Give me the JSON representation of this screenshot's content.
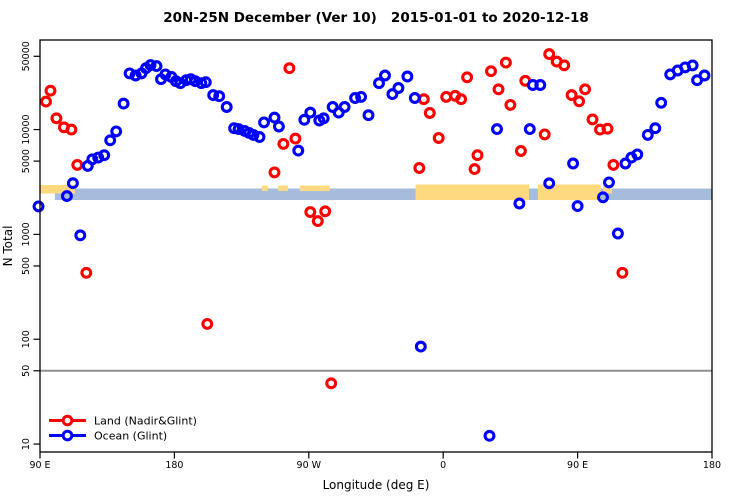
{
  "chart_data": {
    "type": "scatter",
    "title": "20N-25N December (Ver 10)   2015-01-01 to 2020-12-18",
    "xlabel": "Longitude (deg E)",
    "ylabel": "N Total",
    "x_axis": {
      "note": "wrapped longitude axis spanning 450 deg: 90E east to 180, then 90W, 0, 90E, 180",
      "range_deg": [
        90,
        540
      ],
      "ticks": [
        {
          "deg": 90,
          "label": "90 E"
        },
        {
          "deg": 180,
          "label": "180"
        },
        {
          "deg": 270,
          "label": "90 W"
        },
        {
          "deg": 360,
          "label": "0"
        },
        {
          "deg": 450,
          "label": "90 E"
        },
        {
          "deg": 540,
          "label": "180"
        }
      ]
    },
    "y_axis": {
      "scale": "log10",
      "range": [
        8.4,
        71500
      ],
      "ticks": [
        {
          "n": 50000,
          "label": "50000"
        },
        {
          "n": 10000,
          "label": "10000"
        },
        {
          "n": 5000,
          "label": "5000"
        },
        {
          "n": 1000,
          "label": "1000"
        },
        {
          "n": 500,
          "label": "500"
        },
        {
          "n": 100,
          "label": "100"
        },
        {
          "n": 50,
          "label": "50"
        },
        {
          "n": 10,
          "label": "10"
        }
      ]
    },
    "reference_line": {
      "n": 50,
      "color": "#8f8f8f"
    },
    "map_strip": {
      "description": "world-map band for latitude 20N-25N drawn across the plot",
      "ocean_color": "#a5bcdc",
      "land_color": "#ffd97f",
      "ocean_range_deg": [
        100,
        540
      ],
      "land_segments": [
        {
          "from": 90,
          "to": 113.5,
          "extent": "half"
        },
        {
          "from": 238.5,
          "to": 242.5,
          "extent": "sliver"
        },
        {
          "from": 249.5,
          "to": 256,
          "extent": "sliver"
        },
        {
          "from": 264,
          "to": 284,
          "extent": "sliver"
        },
        {
          "from": 341.5,
          "to": 417.5,
          "extent": "full"
        },
        {
          "from": 423.5,
          "to": 465.5,
          "extent": "full"
        },
        {
          "from": 467,
          "to": 473,
          "extent": "half"
        }
      ]
    },
    "series": [
      {
        "name": "Land (Nadir&Glint)",
        "color": "#ff0000",
        "marker": "open-circle",
        "points": [
          [
            94,
            18500
          ],
          [
            97,
            23500
          ],
          [
            101,
            12800
          ],
          [
            106,
            10500
          ],
          [
            111,
            10000
          ],
          [
            115,
            4600
          ],
          [
            121,
            430
          ],
          [
            202,
            140
          ],
          [
            247,
            3900
          ],
          [
            253,
            7300
          ],
          [
            257,
            38500
          ],
          [
            261,
            8200
          ],
          [
            271,
            1630
          ],
          [
            276,
            1340
          ],
          [
            281,
            1660
          ],
          [
            285,
            38
          ],
          [
            344,
            4300
          ],
          [
            347,
            19500
          ],
          [
            351,
            14400
          ],
          [
            357,
            8300
          ],
          [
            362,
            20500
          ],
          [
            368,
            21000
          ],
          [
            372,
            19500
          ],
          [
            376,
            31500
          ],
          [
            381,
            4200
          ],
          [
            383,
            5700
          ],
          [
            392,
            36000
          ],
          [
            397,
            24200
          ],
          [
            402,
            43500
          ],
          [
            405,
            17200
          ],
          [
            412,
            6250
          ],
          [
            415,
            29200
          ],
          [
            428,
            9000
          ],
          [
            431,
            52500
          ],
          [
            436,
            44500
          ],
          [
            441,
            41000
          ],
          [
            446,
            21300
          ],
          [
            451,
            18600
          ],
          [
            455,
            24200
          ],
          [
            460,
            12500
          ],
          [
            465,
            10000
          ],
          [
            470,
            10200
          ],
          [
            474,
            4600
          ],
          [
            480,
            430
          ]
        ]
      },
      {
        "name": "Ocean (Glint)",
        "color": "#0000ff",
        "marker": "open-circle",
        "points": [
          [
            89,
            1850
          ],
          [
            108,
            2320
          ],
          [
            112,
            3080
          ],
          [
            117,
            980
          ],
          [
            122,
            4500
          ],
          [
            125,
            5200
          ],
          [
            129,
            5400
          ],
          [
            133,
            5700
          ],
          [
            137,
            7900
          ],
          [
            141,
            9600
          ],
          [
            146,
            17700
          ],
          [
            150,
            34300
          ],
          [
            154,
            32800
          ],
          [
            158,
            34300
          ],
          [
            161,
            38500
          ],
          [
            164,
            41200
          ],
          [
            168,
            40300
          ],
          [
            171,
            30200
          ],
          [
            174,
            33600
          ],
          [
            178,
            31700
          ],
          [
            181,
            28900
          ],
          [
            184,
            27700
          ],
          [
            188,
            29600
          ],
          [
            191,
            30200
          ],
          [
            194,
            28900
          ],
          [
            198,
            27700
          ],
          [
            201,
            28300
          ],
          [
            206,
            21300
          ],
          [
            210,
            20800
          ],
          [
            215,
            16400
          ],
          [
            220,
            10300
          ],
          [
            223,
            10100
          ],
          [
            227,
            9700
          ],
          [
            230,
            9300
          ],
          [
            233,
            8900
          ],
          [
            237,
            8500
          ],
          [
            240,
            11700
          ],
          [
            247,
            13000
          ],
          [
            250,
            10700
          ],
          [
            263,
            6300
          ],
          [
            267,
            12400
          ],
          [
            271,
            14500
          ],
          [
            277,
            12200
          ],
          [
            280,
            12800
          ],
          [
            286,
            16400
          ],
          [
            290,
            14500
          ],
          [
            294,
            16400
          ],
          [
            301,
            20000
          ],
          [
            305,
            20500
          ],
          [
            310,
            13700
          ],
          [
            317,
            27700
          ],
          [
            321,
            32800
          ],
          [
            326,
            21800
          ],
          [
            330,
            24900
          ],
          [
            336,
            32100
          ],
          [
            341,
            20000
          ],
          [
            345,
            85
          ],
          [
            391,
            12
          ],
          [
            396,
            10100
          ],
          [
            411,
            1970
          ],
          [
            418,
            10100
          ],
          [
            420,
            26600
          ],
          [
            425,
            26600
          ],
          [
            431,
            3070
          ],
          [
            447,
            4750
          ],
          [
            450,
            1860
          ],
          [
            467,
            2260
          ],
          [
            471,
            3130
          ],
          [
            477,
            1020
          ],
          [
            482,
            4750
          ],
          [
            486,
            5400
          ],
          [
            490,
            5800
          ],
          [
            497,
            8900
          ],
          [
            502,
            10300
          ],
          [
            506,
            18000
          ],
          [
            512,
            33600
          ],
          [
            517,
            36600
          ],
          [
            522,
            39200
          ],
          [
            527,
            40900
          ],
          [
            530,
            29600
          ],
          [
            535,
            32800
          ]
        ]
      }
    ],
    "legend": {
      "position": "bottom-left",
      "items": [
        {
          "label": "Land (Nadir&Glint)",
          "color": "#ff0000"
        },
        {
          "label": "Ocean (Glint)",
          "color": "#0000ff"
        }
      ]
    }
  }
}
